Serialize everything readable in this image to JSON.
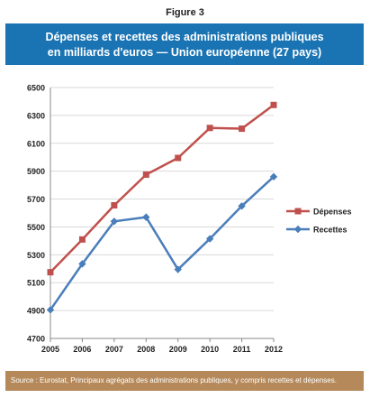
{
  "figure_label": "Figure 3",
  "title_line1": "Dépenses et recettes des administrations publiques",
  "title_line2": "en milliards d'euros — Union européenne (27 pays)",
  "source": "Source : Eurostat, Principaux agrégats des administrations publiques, y compris recettes et dépenses.",
  "colors": {
    "title_band": "#1a74b4",
    "source_bar": "#b5895a",
    "depenses": "#c0504d",
    "recettes": "#4a7ebb"
  },
  "chart_data": {
    "type": "line",
    "title": "Dépenses et recettes des administrations publiques en milliards d'euros — Union européenne (27 pays)",
    "xlabel": "",
    "ylabel": "",
    "x": [
      "2005",
      "2006",
      "2007",
      "2008",
      "2009",
      "2010",
      "2011",
      "2012"
    ],
    "ylim": [
      4700,
      6500
    ],
    "yticks": [
      4700,
      4900,
      5100,
      5300,
      5500,
      5700,
      5900,
      6100,
      6300,
      6500
    ],
    "grid": true,
    "legend": "right",
    "series": [
      {
        "name": "Dépenses",
        "marker": "square",
        "color": "#c0504d",
        "values": [
          5175,
          5410,
          5655,
          5875,
          5995,
          6210,
          6205,
          6375
        ]
      },
      {
        "name": "Recettes",
        "marker": "diamond",
        "color": "#4a7ebb",
        "values": [
          4905,
          5235,
          5540,
          5570,
          5195,
          5415,
          5650,
          5860
        ]
      }
    ]
  }
}
